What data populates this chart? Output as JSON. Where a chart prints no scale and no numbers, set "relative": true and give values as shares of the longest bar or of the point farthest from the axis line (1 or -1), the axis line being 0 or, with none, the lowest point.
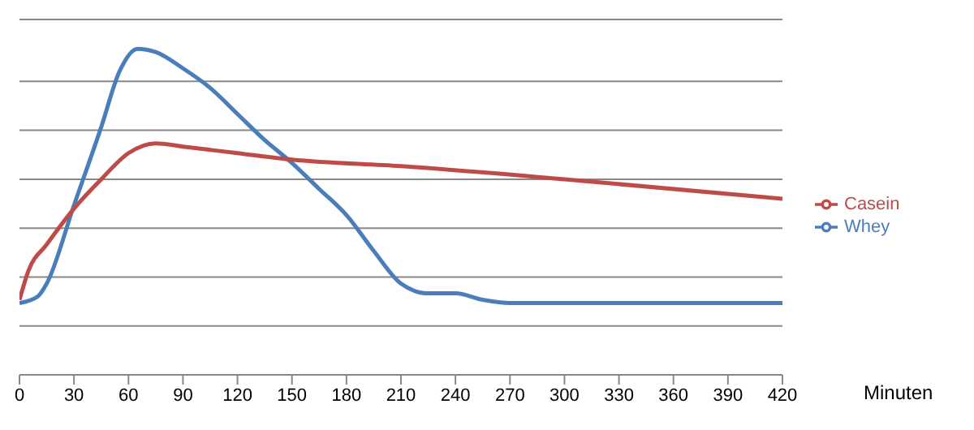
{
  "chart_data": {
    "type": "line",
    "relative": true,
    "xlabel": "Minuten",
    "xlim": [
      0,
      420
    ],
    "xticks": [
      0,
      30,
      60,
      90,
      120,
      150,
      180,
      210,
      240,
      270,
      300,
      330,
      360,
      390,
      420
    ],
    "grid": "y",
    "legend": "right",
    "marker": "none",
    "line_style": "solid",
    "series": [
      {
        "name": "Whey",
        "color": "#4a7ebb",
        "x": [
          0,
          10,
          15,
          30,
          45,
          55,
          65,
          75,
          90,
          105,
          120,
          135,
          150,
          165,
          180,
          195,
          210,
          225,
          240,
          255,
          270,
          285,
          300,
          420
        ],
        "values": [
          0.22,
          0.24,
          0.28,
          0.52,
          0.76,
          0.93,
          1,
          0.99,
          0.94,
          0.88,
          0.8,
          0.72,
          0.65,
          0.57,
          0.49,
          0.38,
          0.28,
          0.25,
          0.25,
          0.23,
          0.22,
          0.22,
          0.22,
          0.22
        ]
      },
      {
        "name": "Casein",
        "color": "#be4b48",
        "x": [
          0,
          5,
          15,
          30,
          45,
          60,
          75,
          90,
          105,
          120,
          150,
          210,
          300,
          420
        ],
        "values": [
          0.23,
          0.32,
          0.4,
          0.51,
          0.6,
          0.68,
          0.71,
          0.7,
          0.69,
          0.68,
          0.66,
          0.64,
          0.6,
          0.54
        ]
      }
    ]
  }
}
